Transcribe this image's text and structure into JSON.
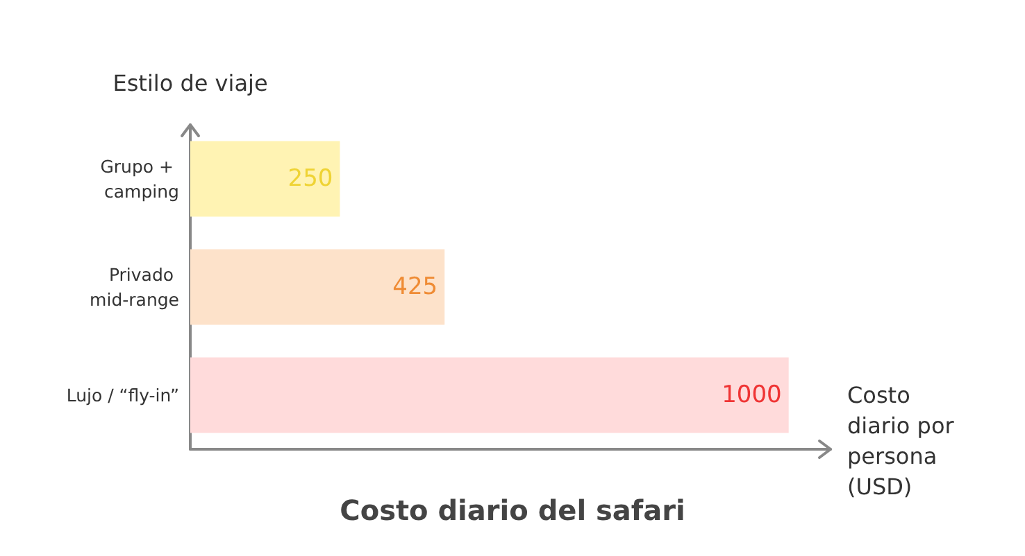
{
  "chart_data": {
    "type": "bar",
    "orientation": "horizontal",
    "title": "Costo diario del safari",
    "xlabel": "Costo diario por persona (USD)",
    "ylabel": "Estilo de viaje",
    "categories": [
      "Grupo + camping",
      "Privado mid-range",
      "Lujo / “fly-in”"
    ],
    "values": [
      250,
      425,
      1000
    ],
    "colors": [
      "#fff3b3",
      "#fde2ca",
      "#ffdbdb"
    ],
    "data_labels": true,
    "grid": false,
    "tick_labels": "y"
  }
}
